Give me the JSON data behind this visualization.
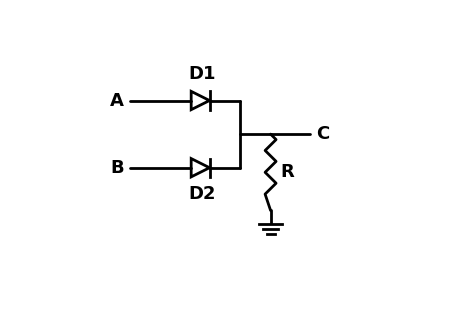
{
  "background_color": "#ffffff",
  "line_color": "#000000",
  "line_width": 2.0,
  "label_A": "A",
  "label_B": "B",
  "label_C": "C",
  "label_D1": "D1",
  "label_D2": "D2",
  "label_R": "R",
  "font_size": 13,
  "font_weight": "bold",
  "figsize": [
    4.74,
    3.11
  ],
  "dpi": 100
}
